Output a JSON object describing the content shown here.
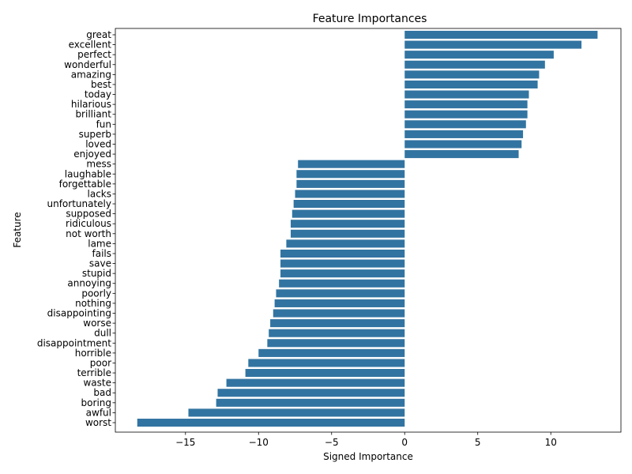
{
  "chart_data": {
    "type": "bar",
    "orientation": "horizontal",
    "title": "Feature Importances",
    "xlabel": "Signed Importance",
    "ylabel": "Feature",
    "xlim": [
      -19.8,
      14.8
    ],
    "xticks": [
      -15,
      -10,
      -5,
      0,
      5,
      10
    ],
    "grid": false,
    "bar_color": "#3274a1",
    "categories": [
      "great",
      "excellent",
      "perfect",
      "wonderful",
      "amazing",
      "best",
      "today",
      "hilarious",
      "brilliant",
      "fun",
      "superb",
      "loved",
      "enjoyed",
      "mess",
      "laughable",
      "forgettable",
      "lacks",
      "unfortunately",
      "supposed",
      "ridiculous",
      "not worth",
      "lame",
      "fails",
      "save",
      "stupid",
      "annoying",
      "poorly",
      "nothing",
      "disappointing",
      "worse",
      "dull",
      "disappointment",
      "horrible",
      "poor",
      "terrible",
      "waste",
      "bad",
      "boring",
      "awful",
      "worst"
    ],
    "values": [
      13.2,
      12.1,
      10.2,
      9.6,
      9.2,
      9.1,
      8.5,
      8.4,
      8.4,
      8.3,
      8.1,
      8.0,
      7.8,
      -7.3,
      -7.4,
      -7.4,
      -7.5,
      -7.6,
      -7.7,
      -7.8,
      -7.8,
      -8.1,
      -8.5,
      -8.5,
      -8.5,
      -8.6,
      -8.8,
      -8.9,
      -9.0,
      -9.2,
      -9.3,
      -9.4,
      -10.0,
      -10.7,
      -10.9,
      -12.2,
      -12.8,
      -12.9,
      -14.8,
      -18.3
    ]
  }
}
